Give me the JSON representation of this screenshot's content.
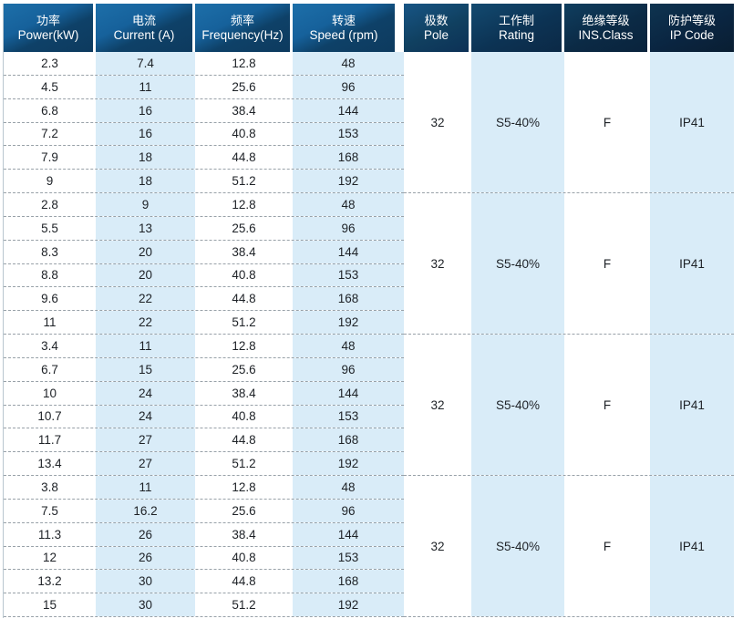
{
  "colors": {
    "header_text": "#ffffff",
    "header_blue_light": "#1d6fa9",
    "header_blue_dark": "#0d3a5e",
    "header_navy_light": "#0e3450",
    "header_navy_dark": "#091e32",
    "stripe_blue": "#d9ecf8",
    "row_text": "#1d2126",
    "dashed_line": "#98a1a8",
    "left_border_line": "#b9c6cf"
  },
  "table": {
    "columns": [
      {
        "zh": "功率",
        "en": "Power(kW)"
      },
      {
        "zh": "电流",
        "en": "Current (A)"
      },
      {
        "zh": "频率",
        "en": "Frequency(Hz)"
      },
      {
        "zh": "转速",
        "en": "Speed (rpm)"
      },
      {
        "zh": "极数",
        "en": "Pole"
      },
      {
        "zh": "工作制",
        "en": "Rating"
      },
      {
        "zh": "绝缘等级",
        "en": "INS.Class"
      },
      {
        "zh": "防护等级",
        "en": "IP Code"
      }
    ],
    "groups": [
      {
        "rows": [
          [
            "2.3",
            "7.4",
            "12.8",
            "48"
          ],
          [
            "4.5",
            "11",
            "25.6",
            "96"
          ],
          [
            "6.8",
            "16",
            "38.4",
            "144"
          ],
          [
            "7.2",
            "16",
            "40.8",
            "153"
          ],
          [
            "7.9",
            "18",
            "44.8",
            "168"
          ],
          [
            "9",
            "18",
            "51.2",
            "192"
          ]
        ],
        "pole": "32",
        "rating": "S5-40%",
        "ins_class": "F",
        "ip_code": "IP41"
      },
      {
        "rows": [
          [
            "2.8",
            "9",
            "12.8",
            "48"
          ],
          [
            "5.5",
            "13",
            "25.6",
            "96"
          ],
          [
            "8.3",
            "20",
            "38.4",
            "144"
          ],
          [
            "8.8",
            "20",
            "40.8",
            "153"
          ],
          [
            "9.6",
            "22",
            "44.8",
            "168"
          ],
          [
            "11",
            "22",
            "51.2",
            "192"
          ]
        ],
        "pole": "32",
        "rating": "S5-40%",
        "ins_class": "F",
        "ip_code": "IP41"
      },
      {
        "rows": [
          [
            "3.4",
            "11",
            "12.8",
            "48"
          ],
          [
            "6.7",
            "15",
            "25.6",
            "96"
          ],
          [
            "10",
            "24",
            "38.4",
            "144"
          ],
          [
            "10.7",
            "24",
            "40.8",
            "153"
          ],
          [
            "11.7",
            "27",
            "44.8",
            "168"
          ],
          [
            "13.4",
            "27",
            "51.2",
            "192"
          ]
        ],
        "pole": "32",
        "rating": "S5-40%",
        "ins_class": "F",
        "ip_code": "IP41"
      },
      {
        "rows": [
          [
            "3.8",
            "11",
            "12.8",
            "48"
          ],
          [
            "7.5",
            "16.2",
            "25.6",
            "96"
          ],
          [
            "11.3",
            "26",
            "38.4",
            "144"
          ],
          [
            "12",
            "26",
            "40.8",
            "153"
          ],
          [
            "13.2",
            "30",
            "44.8",
            "168"
          ],
          [
            "15",
            "30",
            "51.2",
            "192"
          ]
        ],
        "pole": "32",
        "rating": "S5-40%",
        "ins_class": "F",
        "ip_code": "IP41"
      }
    ]
  }
}
